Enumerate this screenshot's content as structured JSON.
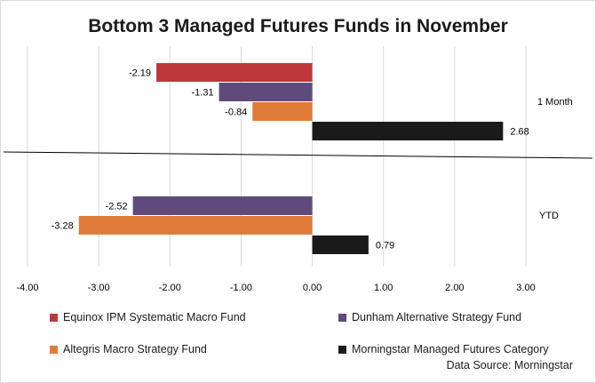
{
  "chart_data": {
    "type": "bar",
    "orientation": "horizontal",
    "title": "Bottom 3 Managed Futures Funds in November",
    "groups": [
      "1 Month",
      "YTD"
    ],
    "series": [
      {
        "name": "Equinox IPM Systematic Macro Fund",
        "color": "#c0363d",
        "values": [
          -2.19,
          null
        ],
        "labels": [
          "-2.19",
          ""
        ]
      },
      {
        "name": "Dunham Alternative Strategy Fund",
        "color": "#604a7b",
        "values": [
          -1.31,
          -2.52
        ],
        "labels": [
          "-1.31",
          "-2.52"
        ]
      },
      {
        "name": "Altegris Macro Strategy Fund",
        "color": "#e07b39",
        "values": [
          -0.84,
          -3.28
        ],
        "labels": [
          "-0.84",
          "-3.28"
        ]
      },
      {
        "name": "Morningstar Managed Futures Category",
        "color": "#1a1a1a",
        "values": [
          2.68,
          0.79
        ],
        "labels": [
          "2.68",
          "0.79"
        ]
      }
    ],
    "xlim": [
      -4,
      3
    ],
    "ticks": [
      -4,
      -3,
      -2,
      -1,
      0,
      1,
      2,
      3
    ],
    "tick_labels": [
      "-4.00",
      "-3.00",
      "-2.00",
      "-1.00",
      "0.00",
      "1.00",
      "2.00",
      "3.00"
    ],
    "grid": true,
    "legend_position": "bottom"
  },
  "source": "Data Source: Morningstar"
}
